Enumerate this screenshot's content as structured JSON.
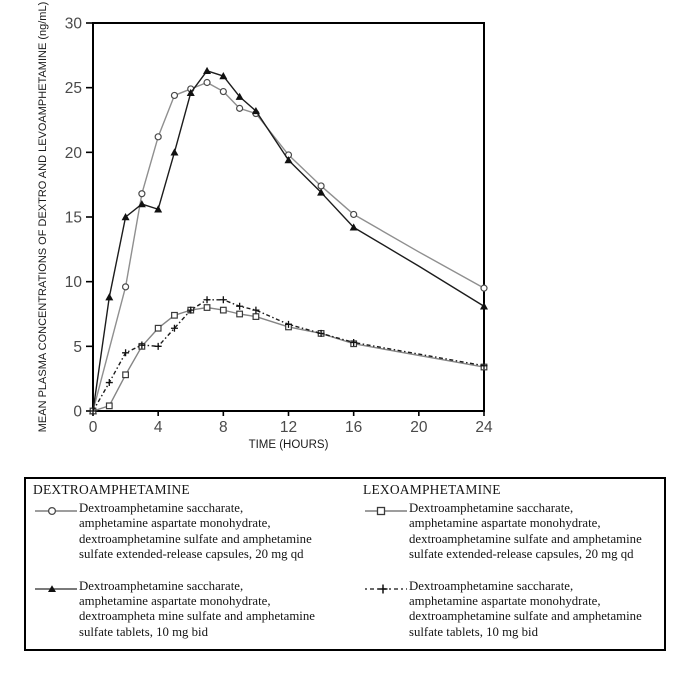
{
  "chart_data": {
    "type": "line",
    "title": "",
    "xlabel": "TIME (HOURS)",
    "ylabel": "MEAN PLASMA CONCENTRATIONS OF DEXTRO AND LEVOAMPHETAMINE (ng/mL)",
    "xlim": [
      0,
      24
    ],
    "ylim": [
      0,
      30
    ],
    "x_ticks": [
      0,
      4,
      8,
      12,
      16,
      20,
      24
    ],
    "y_ticks": [
      0,
      5,
      10,
      15,
      20,
      25,
      30
    ],
    "grid": false,
    "legend_position": "below",
    "series": [
      {
        "id": "dextro-xr-capsules",
        "group": "DEXTROAMPHETAMINE",
        "name": "Dextroamphetamine saccharate, amphetamine aspartate monohydrate, dextroamphetamine sulfate and amphetamine sulfate extended-release capsules, 20 mg qd",
        "marker": "circle-open",
        "line": "solid",
        "color": "#8f8f8f",
        "marker_color": "#4a4a4a",
        "x": [
          0,
          2,
          3,
          4,
          5,
          6,
          7,
          8,
          9,
          10,
          12,
          14,
          16,
          20,
          24
        ],
        "y": [
          0,
          9.6,
          16.8,
          21.2,
          24.4,
          24.9,
          25.4,
          24.7,
          23.4,
          23.0,
          19.8,
          17.4,
          15.2,
          12.3,
          9.5
        ],
        "no_marker_at": [
          20
        ]
      },
      {
        "id": "dextro-tablets-bid",
        "group": "DEXTROAMPHETAMINE",
        "name": "Dextroamphetamine saccharate, amphetamine aspartate monohydrate, dextroampheta mine sulfate and amphetamine sulfate tablets, 10 mg bid",
        "marker": "triangle-filled",
        "line": "solid",
        "color": "#1c1c1c",
        "marker_color": "#111111",
        "x": [
          0,
          1,
          2,
          3,
          4,
          5,
          6,
          7,
          8,
          9,
          10,
          12,
          14,
          16,
          20,
          24
        ],
        "y": [
          0,
          8.8,
          15.0,
          16.0,
          15.6,
          20.0,
          24.6,
          26.3,
          25.9,
          24.3,
          23.2,
          19.4,
          16.9,
          14.2,
          11.2,
          8.1
        ],
        "no_marker_at": [
          20
        ]
      },
      {
        "id": "levo-xr-capsules",
        "group": "LEXOAMPHETAMINE",
        "name": "Dextroamphetamine saccharate, amphetamine aspartate monohydrate, dextroamphetamine sulfate and amphetamine sulfate extended-release capsules, 20 mg qd",
        "marker": "square-open",
        "line": "solid",
        "color": "#858585",
        "marker_color": "#3a3a3a",
        "x": [
          0,
          1,
          2,
          3,
          4,
          5,
          6,
          7,
          8,
          9,
          10,
          12,
          14,
          16,
          20,
          24
        ],
        "y": [
          0,
          0.4,
          2.8,
          5.0,
          6.4,
          7.4,
          7.8,
          8.0,
          7.8,
          7.5,
          7.3,
          6.5,
          6.0,
          5.2,
          4.3,
          3.4
        ],
        "no_marker_at": [
          20
        ]
      },
      {
        "id": "levo-tablets-bid",
        "group": "LEXOAMPHETAMINE",
        "name": "Dextroamphetamine saccharate, amphetamine aspartate monohydrate, dextroamphetamine sulfate and amphetamine sulfate tablets, 10 mg bid",
        "marker": "plus",
        "line": "dash-dot",
        "color": "#1c1c1c",
        "marker_color": "#111111",
        "x": [
          0,
          1,
          2,
          3,
          4,
          5,
          6,
          7,
          8,
          9,
          10,
          12,
          14,
          16,
          20,
          24
        ],
        "y": [
          0,
          2.2,
          4.5,
          5.1,
          5.0,
          6.4,
          7.8,
          8.6,
          8.6,
          8.1,
          7.8,
          6.7,
          6.0,
          5.3,
          4.4,
          3.5
        ],
        "no_marker_at": [
          20
        ]
      }
    ]
  },
  "legend": {
    "columns": [
      {
        "header": "DEXTROAMPHETAMINE",
        "entries": [
          {
            "icon": "circle-line-icon",
            "lines": [
              "Dextroamphetamine saccharate,",
              "amphetamine aspartate monohydrate,",
              "dextroamphetamine sulfate and amphetamine",
              "sulfate extended-release capsules, 20 mg qd"
            ]
          },
          {
            "icon": "triangle-line-icon",
            "lines": [
              "Dextroamphetamine saccharate,",
              "amphetamine aspartate monohydrate,",
              "dextroampheta mine sulfate and amphetamine",
              "sulfate tablets, 10 mg bid"
            ]
          }
        ]
      },
      {
        "header": "LEXOAMPHETAMINE",
        "entries": [
          {
            "icon": "square-line-icon",
            "lines": [
              "Dextroamphetamine saccharate,",
              "amphetamine aspartate monohydrate,",
              "dextroamphetamine sulfate and amphetamine",
              "sulfate extended-release capsules, 20 mg qd"
            ]
          },
          {
            "icon": "plus-dashed-line-icon",
            "lines": [
              "Dextroamphetamine saccharate,",
              "amphetamine aspartate monohydrate,",
              "dextroamphetamine sulfate and amphetamine",
              "sulfate tablets, 10 mg bid"
            ]
          }
        ]
      }
    ]
  },
  "colors": {
    "axis": "#000000",
    "tick_label": "#4a4a4a",
    "gray_series": "#8f8f8f",
    "black_series": "#1c1c1c",
    "background": "#ffffff"
  }
}
